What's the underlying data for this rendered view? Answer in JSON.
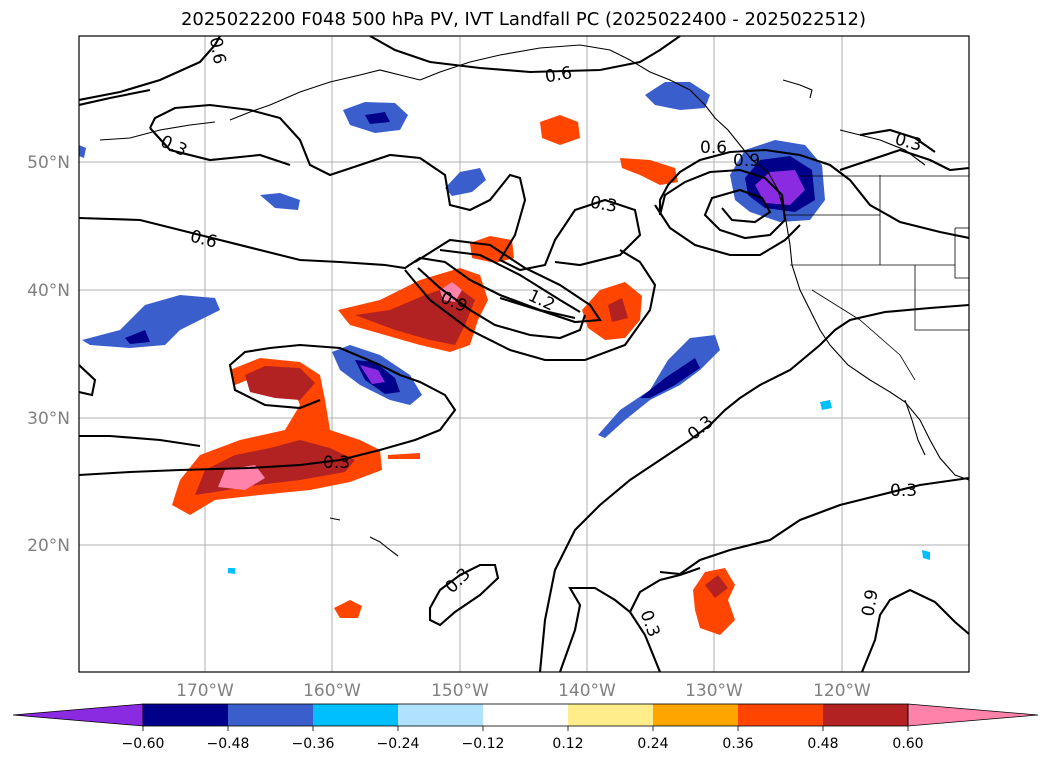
{
  "title": "2025022200 F048 500 hPa PV, IVT Landfall PC (2025022400 - 2025022512)",
  "longitude_labels": [
    "170°W",
    "160°W",
    "150°W",
    "140°W",
    "130°W",
    "120°W"
  ],
  "latitude_labels": [
    "50°N",
    "40°N",
    "30°N",
    "20°N"
  ],
  "contour_labels": [
    "0.6",
    "0.3",
    "0.6",
    "0.6",
    "0.3",
    "0.9",
    "1.2",
    "0.9",
    "0.3",
    "0.3",
    "0.3",
    "0.3",
    "0.3",
    "0.3",
    "0.6",
    "0.9"
  ],
  "colorbar": {
    "ticks": [
      "−0.60",
      "−0.48",
      "−0.36",
      "−0.24",
      "−0.12",
      "0.12",
      "0.24",
      "0.36",
      "0.48",
      "0.60"
    ],
    "colors": [
      "#8a2be2",
      "#00008b",
      "#3a5fcd",
      "#00bfff",
      "#b0e2ff",
      "#ffffff",
      "#ffec8b",
      "#ffa500",
      "#ff4500",
      "#b22222",
      "#ff82ab"
    ]
  }
}
